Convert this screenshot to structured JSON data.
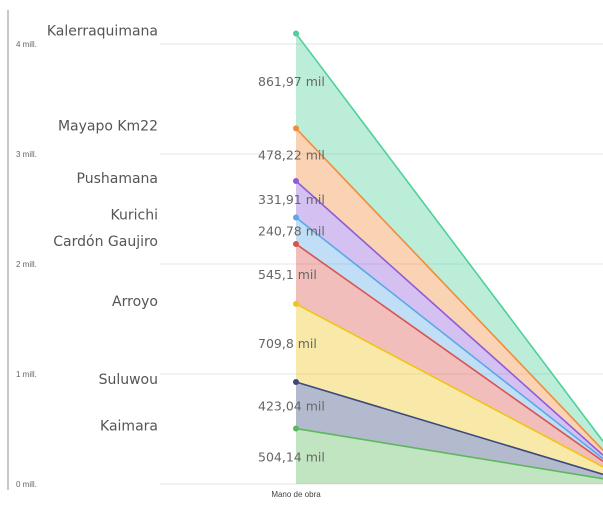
{
  "chart_data": {
    "type": "area",
    "x": [
      "Mano de obra"
    ],
    "y_ticks": [
      "0 mill.",
      "1 mill.",
      "2 mill.",
      "3 mill.",
      "4 mill."
    ],
    "ylim": [
      0,
      4000000
    ],
    "grid": true,
    "series": [
      {
        "name": "Kaimara",
        "value": 504.14,
        "label": "504,14 mil",
        "color": "#5cb85c"
      },
      {
        "name": "Suluwou",
        "value": 423.04,
        "label": "423,04 mil",
        "color": "#3b4a7d"
      },
      {
        "name": "Arroyo",
        "value": 709.8,
        "label": "709,8 mil",
        "color": "#f0c419"
      },
      {
        "name": "Cardón Gaujiro",
        "value": 545.1,
        "label": "545,1 mil",
        "color": "#d9534f"
      },
      {
        "name": "Kurichi",
        "value": 240.78,
        "label": "240,78 mil",
        "color": "#5aa9e6"
      },
      {
        "name": "Pushamana",
        "value": 331.91,
        "label": "331,91 mil",
        "color": "#8e5cd9"
      },
      {
        "name": "Mayapo Km22",
        "value": 478.22,
        "label": "478,22 mil",
        "color": "#f08c3a"
      },
      {
        "name": "Kalerraquimana",
        "value": 861.97,
        "label": "861,97 mil",
        "color": "#4fd09a"
      }
    ]
  }
}
